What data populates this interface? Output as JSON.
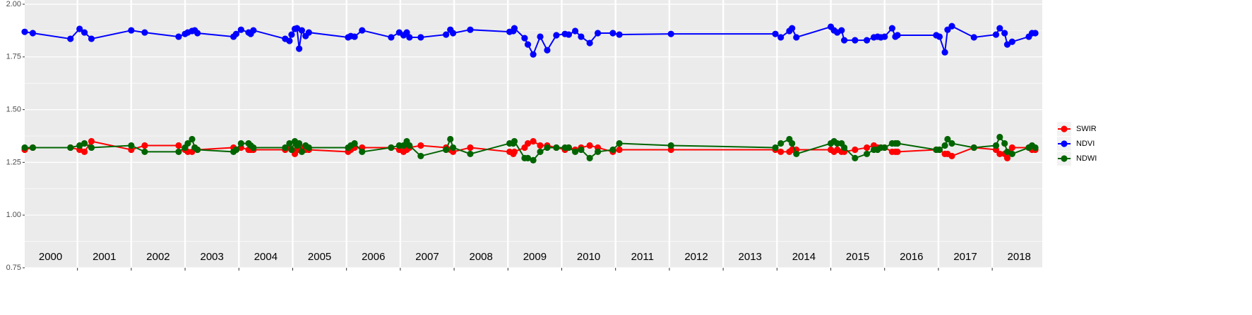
{
  "chart_data": {
    "type": "line",
    "xlim": [
      2000.02,
      2018.93
    ],
    "ylim": [
      0.75,
      2.02
    ],
    "yticks": [
      0.75,
      {
        "value": 1.0,
        "label": "1.00"
      },
      1.25,
      {
        "value": 1.5,
        "label": "1.50"
      },
      1.75,
      {
        "value": 2.0,
        "label": "2.00"
      }
    ],
    "y_minor_grid": [
      0.875,
      1.125,
      1.375,
      1.625,
      1.875
    ],
    "x_gridlines": [
      2001,
      2002,
      2003,
      2004,
      2005,
      2006,
      2007,
      2008,
      2009,
      2010,
      2011,
      2012,
      2013,
      2014,
      2015,
      2016,
      2017,
      2018
    ],
    "grid": true,
    "legend": "right",
    "annotations": [
      {
        "x": 2000.5,
        "y": 0.8,
        "text": "2000"
      },
      {
        "x": 2001.5,
        "y": 0.8,
        "text": "2001"
      },
      {
        "x": 2002.5,
        "y": 0.8,
        "text": "2002"
      },
      {
        "x": 2003.5,
        "y": 0.8,
        "text": "2003"
      },
      {
        "x": 2004.5,
        "y": 0.8,
        "text": "2004"
      },
      {
        "x": 2005.5,
        "y": 0.8,
        "text": "2005"
      },
      {
        "x": 2006.5,
        "y": 0.8,
        "text": "2006"
      },
      {
        "x": 2007.5,
        "y": 0.8,
        "text": "2007"
      },
      {
        "x": 2008.5,
        "y": 0.8,
        "text": "2008"
      },
      {
        "x": 2009.5,
        "y": 0.8,
        "text": "2009"
      },
      {
        "x": 2010.5,
        "y": 0.8,
        "text": "2010"
      },
      {
        "x": 2011.5,
        "y": 0.8,
        "text": "2011"
      },
      {
        "x": 2012.5,
        "y": 0.8,
        "text": "2012"
      },
      {
        "x": 2013.5,
        "y": 0.8,
        "text": "2013"
      },
      {
        "x": 2014.5,
        "y": 0.8,
        "text": "2014"
      },
      {
        "x": 2015.5,
        "y": 0.8,
        "text": "2015"
      },
      {
        "x": 2016.5,
        "y": 0.8,
        "text": "2016"
      },
      {
        "x": 2017.5,
        "y": 0.8,
        "text": "2017"
      },
      {
        "x": 2018.5,
        "y": 0.8,
        "text": "2018"
      }
    ],
    "x": [
      2000.02,
      2000.17,
      2000.87,
      2001.04,
      2001.13,
      2001.26,
      2002.0,
      2002.25,
      2002.88,
      2003.0,
      2003.05,
      2003.13,
      2003.18,
      2003.23,
      2003.9,
      2003.95,
      2004.04,
      2004.18,
      2004.22,
      2004.27,
      2004.86,
      2004.94,
      2004.98,
      2005.04,
      2005.08,
      2005.12,
      2005.17,
      2005.24,
      2005.3,
      2006.03,
      2006.08,
      2006.15,
      2006.29,
      2006.83,
      2006.98,
      2007.06,
      2007.12,
      2007.17,
      2007.38,
      2007.85,
      2007.93,
      2007.98,
      2008.3,
      2009.03,
      2009.1,
      2009.12,
      2009.31,
      2009.37,
      2009.47,
      2009.6,
      2009.73,
      2009.9,
      2010.06,
      2010.13,
      2010.25,
      2010.36,
      2010.52,
      2010.67,
      2010.95,
      2011.07,
      2012.03,
      2013.97,
      2014.07,
      2014.23,
      2014.28,
      2014.36,
      2015.0,
      2015.06,
      2015.12,
      2015.2,
      2015.25,
      2015.45,
      2015.67,
      2015.8,
      2015.87,
      2015.93,
      2016.0,
      2016.14,
      2016.2,
      2016.24,
      2016.96,
      2017.02,
      2017.12,
      2017.17,
      2017.25,
      2017.66,
      2018.07,
      2018.14,
      2018.23,
      2018.28,
      2018.37,
      2018.68,
      2018.74,
      2018.8
    ],
    "series": [
      {
        "name": "SWIR",
        "color": "#ff0000",
        "values": [
          1.31,
          1.32,
          1.32,
          1.31,
          1.3,
          1.35,
          1.31,
          1.33,
          1.33,
          1.31,
          1.3,
          1.3,
          1.32,
          1.31,
          1.32,
          1.31,
          1.32,
          1.31,
          1.31,
          1.31,
          1.31,
          1.32,
          1.31,
          1.29,
          1.31,
          1.31,
          1.32,
          1.31,
          1.31,
          1.3,
          1.31,
          1.32,
          1.32,
          1.32,
          1.31,
          1.3,
          1.31,
          1.32,
          1.33,
          1.32,
          1.31,
          1.3,
          1.32,
          1.3,
          1.29,
          1.3,
          1.32,
          1.34,
          1.35,
          1.33,
          1.33,
          1.32,
          1.31,
          1.32,
          1.31,
          1.32,
          1.33,
          1.32,
          1.3,
          1.31,
          1.31,
          1.31,
          1.3,
          1.3,
          1.31,
          1.31,
          1.31,
          1.3,
          1.31,
          1.3,
          1.3,
          1.31,
          1.32,
          1.33,
          1.32,
          1.32,
          1.32,
          1.3,
          1.3,
          1.3,
          1.31,
          1.31,
          1.29,
          1.29,
          1.28,
          1.32,
          1.31,
          1.29,
          1.29,
          1.27,
          1.32,
          1.32,
          1.31,
          1.31
        ]
      },
      {
        "name": "NDVI",
        "color": "#0000ff",
        "values": [
          1.869,
          1.863,
          1.836,
          1.883,
          1.866,
          1.836,
          1.876,
          1.866,
          1.846,
          1.859,
          1.866,
          1.873,
          1.876,
          1.863,
          1.846,
          1.859,
          1.879,
          1.866,
          1.859,
          1.876,
          1.836,
          1.826,
          1.856,
          1.883,
          1.886,
          1.789,
          1.876,
          1.849,
          1.866,
          1.843,
          1.849,
          1.846,
          1.876,
          1.843,
          1.866,
          1.853,
          1.866,
          1.843,
          1.843,
          1.856,
          1.879,
          1.863,
          1.879,
          1.869,
          1.873,
          1.886,
          1.839,
          1.809,
          1.762,
          1.846,
          1.782,
          1.853,
          1.859,
          1.856,
          1.873,
          1.846,
          1.816,
          1.863,
          1.863,
          1.856,
          1.859,
          1.859,
          1.843,
          1.873,
          1.886,
          1.843,
          1.893,
          1.876,
          1.866,
          1.876,
          1.829,
          1.829,
          1.829,
          1.843,
          1.846,
          1.843,
          1.846,
          1.886,
          1.846,
          1.853,
          1.853,
          1.846,
          1.772,
          1.879,
          1.896,
          1.843,
          1.856,
          1.886,
          1.863,
          1.809,
          1.822,
          1.846,
          1.863,
          1.863
        ]
      },
      {
        "name": "NDWI",
        "color": "#006400",
        "values": [
          1.32,
          1.32,
          1.32,
          1.33,
          1.34,
          1.32,
          1.33,
          1.3,
          1.3,
          1.32,
          1.34,
          1.36,
          1.32,
          1.31,
          1.3,
          1.31,
          1.34,
          1.34,
          1.33,
          1.32,
          1.32,
          1.34,
          1.31,
          1.35,
          1.33,
          1.34,
          1.3,
          1.33,
          1.32,
          1.32,
          1.33,
          1.34,
          1.3,
          1.32,
          1.33,
          1.33,
          1.35,
          1.33,
          1.28,
          1.31,
          1.36,
          1.32,
          1.29,
          1.34,
          1.34,
          1.35,
          1.27,
          1.27,
          1.26,
          1.3,
          1.32,
          1.32,
          1.32,
          1.32,
          1.3,
          1.31,
          1.27,
          1.3,
          1.31,
          1.34,
          1.33,
          1.32,
          1.34,
          1.36,
          1.34,
          1.29,
          1.34,
          1.35,
          1.34,
          1.34,
          1.32,
          1.27,
          1.29,
          1.31,
          1.31,
          1.32,
          1.32,
          1.34,
          1.34,
          1.34,
          1.31,
          1.31,
          1.33,
          1.36,
          1.34,
          1.32,
          1.33,
          1.37,
          1.34,
          1.3,
          1.29,
          1.32,
          1.33,
          1.32
        ]
      }
    ]
  }
}
